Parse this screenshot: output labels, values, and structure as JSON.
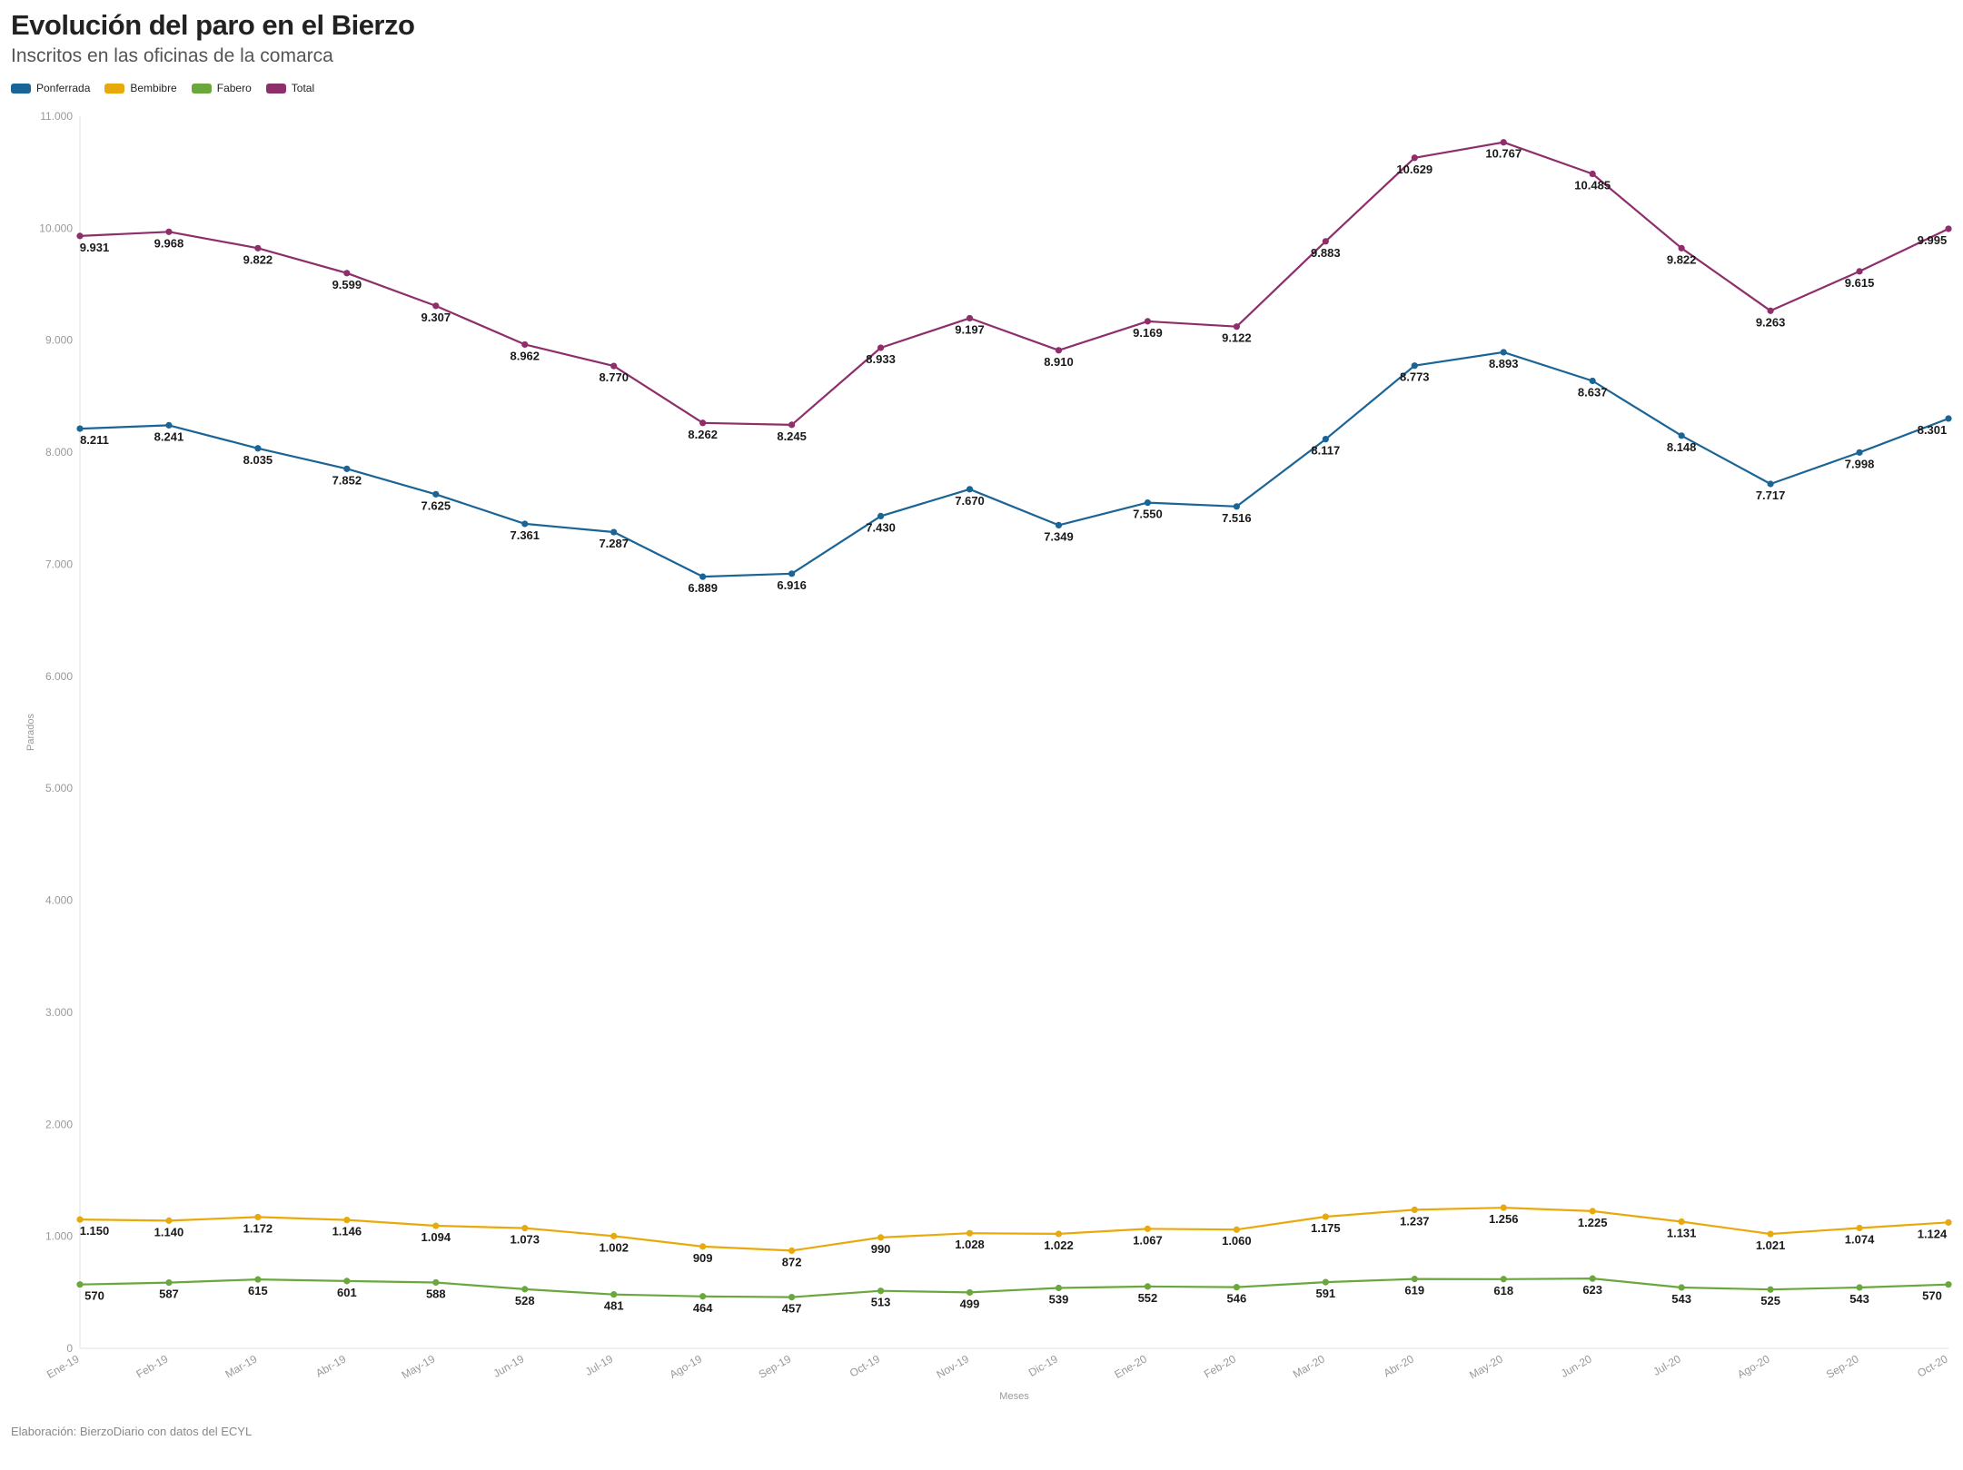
{
  "title": "Evolución del paro en el Bierzo",
  "subtitle": "Inscritos en las oficinas de la comarca",
  "footer": "Elaboración: BierzoDiario con datos del ECYL",
  "chart_data": {
    "type": "line",
    "xlabel": "Meses",
    "ylabel": "Parados",
    "ylim": [
      0,
      11000
    ],
    "yticks": [
      0,
      1000,
      2000,
      3000,
      4000,
      5000,
      6000,
      7000,
      8000,
      9000,
      10000,
      11000
    ],
    "ytick_labels": [
      "0",
      "1.000",
      "2.000",
      "3.000",
      "4.000",
      "5.000",
      "6.000",
      "7.000",
      "8.000",
      "9.000",
      "10.000",
      "11.000"
    ],
    "legend_position": "top-left",
    "grid": false,
    "categories": [
      "Ene-19",
      "Feb-19",
      "Mar-19",
      "Abr-19",
      "May-19",
      "Jun-19",
      "Jul-19",
      "Ago-19",
      "Sep-19",
      "Oct-19",
      "Nov-19",
      "Dic-19",
      "Ene-20",
      "Feb-20",
      "Mar-20",
      "Abr-20",
      "May-20",
      "Jun-20",
      "Jul-20",
      "Ago-20",
      "Sep-20",
      "Oct-20"
    ],
    "series": [
      {
        "name": "Ponferrada",
        "color": "#1a6496",
        "values": [
          8211,
          8241,
          8035,
          7852,
          7625,
          7361,
          7287,
          6889,
          6916,
          7430,
          7670,
          7349,
          7550,
          7516,
          8117,
          8773,
          8893,
          8637,
          8148,
          7717,
          7998,
          8301
        ],
        "labels": [
          "8.211",
          "8.241",
          "8.035",
          "7.852",
          "7.625",
          "7.361",
          "7.287",
          "6.889",
          "6.916",
          "7.430",
          "7.670",
          "7.349",
          "7.550",
          "7.516",
          "8.117",
          "8.773",
          "8.893",
          "8.637",
          "8.148",
          "7.717",
          "7.998",
          "8.301"
        ]
      },
      {
        "name": "Bembibre",
        "color": "#e8a90c",
        "values": [
          1150,
          1140,
          1172,
          1146,
          1094,
          1073,
          1002,
          909,
          872,
          990,
          1028,
          1022,
          1067,
          1060,
          1175,
          1237,
          1256,
          1225,
          1131,
          1021,
          1074,
          1124
        ],
        "labels": [
          "1.150",
          "1.140",
          "1.172",
          "1.146",
          "1.094",
          "1.073",
          "1.002",
          "909",
          "872",
          "990",
          "1.028",
          "1.022",
          "1.067",
          "1.060",
          "1.175",
          "1.237",
          "1.256",
          "1.225",
          "1.131",
          "1.021",
          "1.074",
          "1.124"
        ]
      },
      {
        "name": "Fabero",
        "color": "#6aa83e",
        "values": [
          570,
          587,
          615,
          601,
          588,
          528,
          481,
          464,
          457,
          513,
          499,
          539,
          552,
          546,
          591,
          619,
          618,
          623,
          543,
          525,
          543,
          570
        ],
        "labels": [
          "570",
          "587",
          "615",
          "601",
          "588",
          "528",
          "481",
          "464",
          "457",
          "513",
          "499",
          "539",
          "552",
          "546",
          "591",
          "619",
          "618",
          "623",
          "543",
          "525",
          "543",
          "570"
        ]
      },
      {
        "name": "Total",
        "color": "#8e2e6b",
        "values": [
          9931,
          9968,
          9822,
          9599,
          9307,
          8962,
          8770,
          8262,
          8245,
          8933,
          9197,
          8910,
          9169,
          9122,
          9883,
          10629,
          10767,
          10485,
          9822,
          9263,
          9615,
          9995
        ],
        "labels": [
          "9.931",
          "9.968",
          "9.822",
          "9.599",
          "9.307",
          "8.962",
          "8.770",
          "8.262",
          "8.245",
          "8.933",
          "9.197",
          "8.910",
          "9.169",
          "9.122",
          "9.883",
          "10.629",
          "10.767",
          "10.485",
          "9.822",
          "9.263",
          "9.615",
          "9.995"
        ]
      }
    ]
  }
}
